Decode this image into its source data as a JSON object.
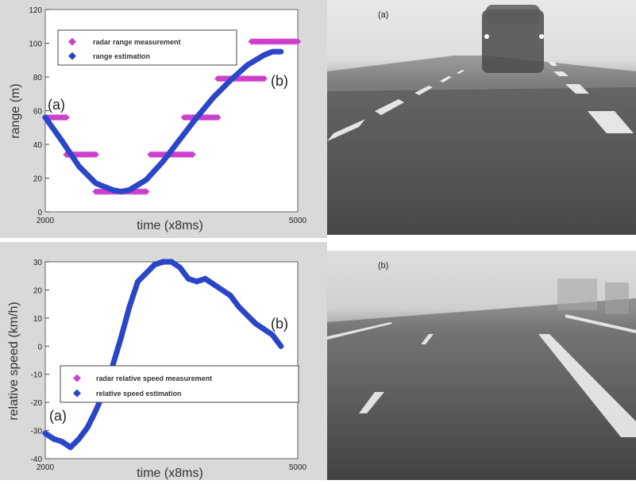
{
  "chart_data": [
    {
      "id": "range",
      "type": "scatter",
      "xlabel": "time (x8ms)",
      "ylabel": "range (m)",
      "xlim": [
        2000,
        5000
      ],
      "ylim": [
        0,
        120
      ],
      "x_ticks": [
        "2000",
        "5000"
      ],
      "y_ticks": [
        "0",
        "20",
        "40",
        "60",
        "80",
        "100",
        "120"
      ],
      "legend": [
        "radar range measurement",
        "range estimation"
      ],
      "annotations": [
        "(a)",
        "(b)"
      ],
      "colors": {
        "measurement": "#cc3fcc",
        "estimation": "#2a46c8"
      },
      "series": [
        {
          "name": "radar range measurement",
          "style": "markers",
          "segments": [
            {
              "x": [
                2000,
                2250
              ],
              "y": 56
            },
            {
              "x": [
                2250,
                2600
              ],
              "y": 34
            },
            {
              "x": [
                2600,
                3200
              ],
              "y": 12
            },
            {
              "x": [
                3250,
                3750
              ],
              "y": 34
            },
            {
              "x": [
                3650,
                4050
              ],
              "y": 56
            },
            {
              "x": [
                4050,
                4600
              ],
              "y": 79
            },
            {
              "x": [
                4450,
                5000
              ],
              "y": 101
            }
          ]
        },
        {
          "name": "range estimation",
          "style": "line",
          "x": [
            2000,
            2200,
            2400,
            2600,
            2800,
            2900,
            3000,
            3200,
            3400,
            3600,
            3800,
            4000,
            4200,
            4400,
            4600,
            4700,
            4800
          ],
          "y": [
            56,
            42,
            27,
            17,
            13,
            12,
            13,
            19,
            30,
            43,
            56,
            68,
            78,
            87,
            93,
            95,
            95
          ]
        }
      ]
    },
    {
      "id": "speed",
      "type": "scatter",
      "xlabel": "time (x8ms)",
      "ylabel": "relative speed (km/h)",
      "xlim": [
        2000,
        5000
      ],
      "ylim": [
        -40,
        30
      ],
      "x_ticks": [
        "2000",
        "5000"
      ],
      "y_ticks": [
        "-40",
        "-30",
        "-20",
        "-10",
        "0",
        "10",
        "20",
        "30"
      ],
      "legend": [
        "radar relative speed measurement",
        "relative speed estimation"
      ],
      "annotations": [
        "(a)",
        "(b)"
      ],
      "colors": {
        "measurement": "#cc3fcc",
        "estimation": "#2a46c8"
      },
      "series": [
        {
          "name": "radar relative speed measurement",
          "style": "markers",
          "x": [
            2000,
            2100,
            2200,
            2300,
            2400,
            2500,
            2600,
            2700,
            2800,
            2900,
            3000,
            3100,
            3200,
            3300,
            3400,
            3500,
            3600,
            3700,
            3800,
            3900,
            4000,
            4100,
            4200,
            4300,
            4400,
            4500,
            4600,
            4700,
            4800
          ],
          "y": [
            -31,
            -33,
            -34,
            -36,
            -33,
            -29,
            -23,
            -16,
            -7,
            3,
            14,
            23,
            26,
            29,
            30,
            30,
            28,
            24,
            23,
            24,
            22,
            20,
            18,
            14,
            11,
            8,
            6,
            4,
            0
          ]
        },
        {
          "name": "relative speed estimation",
          "style": "line",
          "x": [
            2000,
            2100,
            2200,
            2300,
            2400,
            2500,
            2600,
            2700,
            2800,
            2900,
            3000,
            3100,
            3200,
            3300,
            3400,
            3500,
            3600,
            3700,
            3800,
            3900,
            4000,
            4100,
            4200,
            4300,
            4400,
            4500,
            4600,
            4700,
            4800
          ],
          "y": [
            -31,
            -33,
            -34,
            -36,
            -33,
            -29,
            -23,
            -16,
            -7,
            3,
            14,
            23,
            26,
            29,
            30,
            30,
            28,
            24,
            23,
            24,
            22,
            20,
            18,
            14,
            11,
            8,
            6,
            4,
            0
          ]
        }
      ]
    }
  ],
  "photos": [
    {
      "label": "(a)",
      "description_icon": "foggy-road-with-car-icon"
    },
    {
      "label": "(b)",
      "description_icon": "foggy-highway-icon"
    }
  ]
}
